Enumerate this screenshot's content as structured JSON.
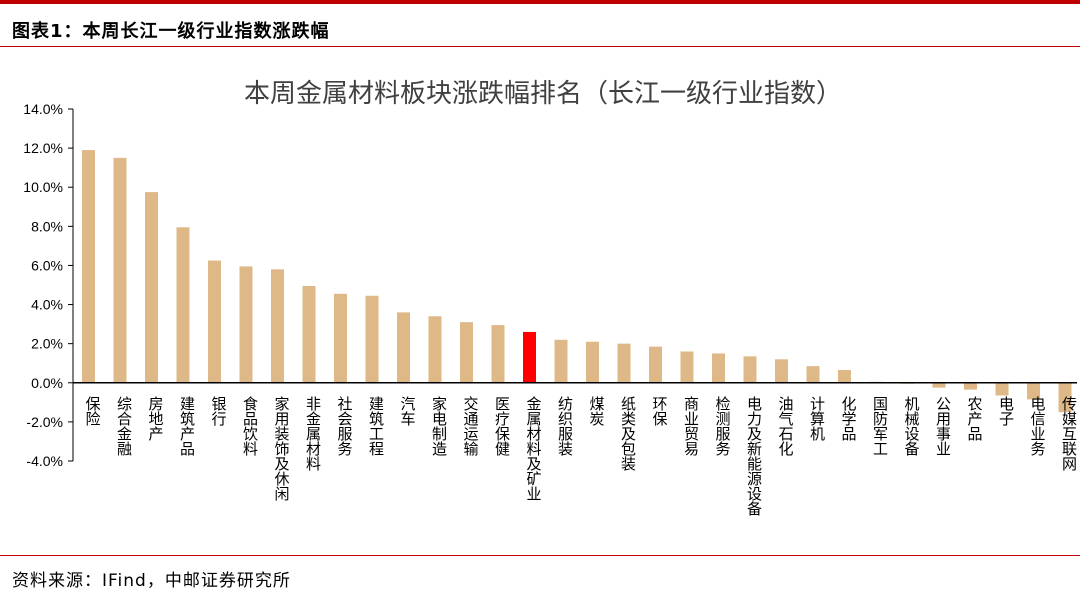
{
  "figure": {
    "label": "图表1：本周长江一级行业指数涨跌幅",
    "source": "资料来源：IFind，中邮证券研究所"
  },
  "colors": {
    "accent": "#c00000",
    "bar": "#deb887",
    "highlight_bar": "#ff0000",
    "axis": "#000000"
  },
  "chart_data": {
    "type": "bar",
    "title": "本周金属材料板块涨跌幅排名（长江一级行业指数）",
    "xlabel": "",
    "ylabel": "",
    "ylim": [
      -4.0,
      14.0
    ],
    "y_ticks": [
      -4.0,
      -2.0,
      0.0,
      2.0,
      4.0,
      6.0,
      8.0,
      10.0,
      12.0,
      14.0
    ],
    "y_tick_labels": [
      "-4.0%",
      "-2.0%",
      "0.0%",
      "2.0%",
      "4.0%",
      "6.0%",
      "8.0%",
      "10.0%",
      "12.0%",
      "14.0%"
    ],
    "unit": "%",
    "grid": false,
    "legend": "none",
    "highlight": "金属材料及矿业",
    "categories": [
      "保险",
      "综合金融",
      "房地产",
      "建筑产品",
      "银行",
      "食品饮料",
      "家用装饰及休闲",
      "非金属材料",
      "社会服务",
      "建筑工程",
      "汽车",
      "家电制造",
      "交通运输",
      "医疗保健",
      "金属材料及矿业",
      "纺织服装",
      "煤炭",
      "纸类及包装",
      "环保",
      "商业贸易",
      "检测服务",
      "电力及新能源设备",
      "油气石化",
      "计算机",
      "化学品",
      "国防军工",
      "机械设备",
      "公用事业",
      "农产品",
      "电子",
      "电信业务",
      "传媒互联网"
    ],
    "values": [
      11.9,
      11.5,
      9.75,
      7.95,
      6.25,
      5.95,
      5.8,
      4.95,
      4.55,
      4.45,
      3.6,
      3.4,
      3.1,
      2.95,
      2.6,
      2.2,
      2.1,
      2.0,
      1.85,
      1.6,
      1.5,
      1.35,
      1.2,
      0.85,
      0.65,
      0.05,
      -0.05,
      -0.25,
      -0.35,
      -0.65,
      -0.85,
      -1.5
    ]
  }
}
